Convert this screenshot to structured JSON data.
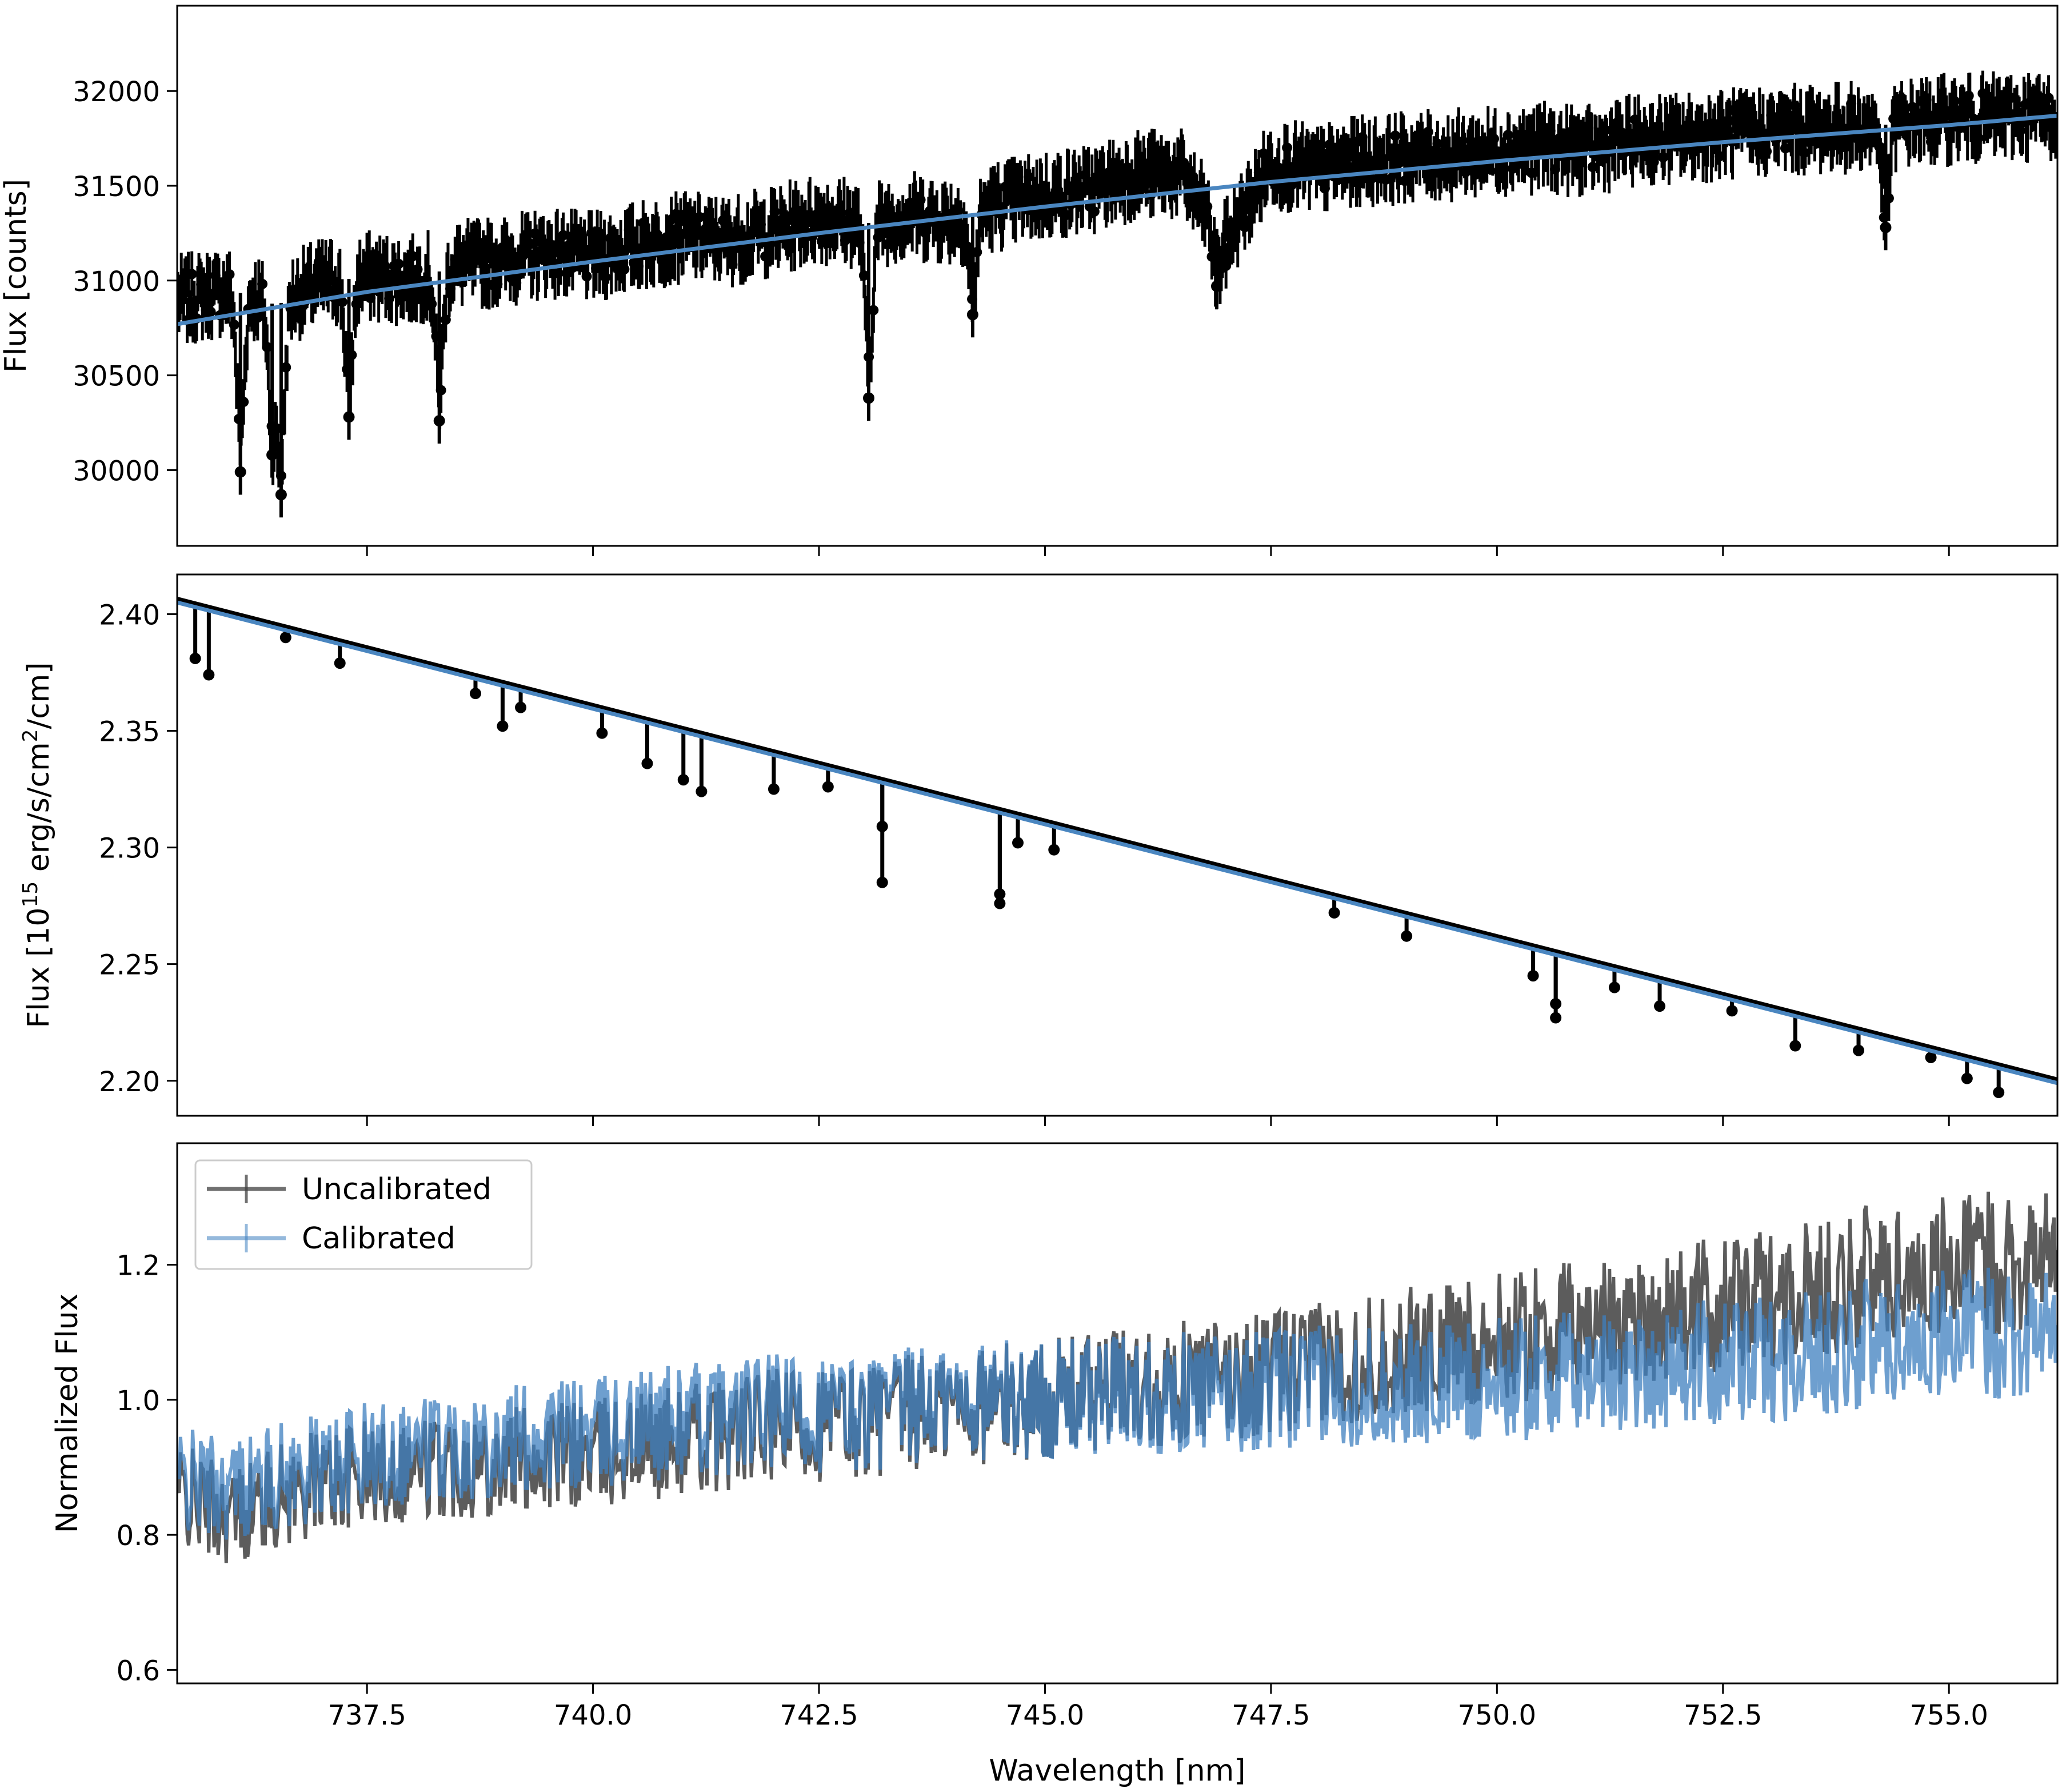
{
  "chart_data": [
    {
      "type": "scatter",
      "title": "",
      "xlabel": "",
      "ylabel": "Flux [counts]",
      "xlim": [
        735.4,
        756.2
      ],
      "ylim": [
        29600,
        32450
      ],
      "yticks": [
        30000,
        30500,
        31000,
        31500,
        32000
      ],
      "ytick_labels": [
        "30000",
        "30500",
        "31000",
        "31500",
        "32000"
      ],
      "xticks": [
        737.5,
        740.0,
        742.5,
        745.0,
        747.5,
        750.0,
        752.5,
        755.0
      ],
      "grid": false,
      "series": [
        {
          "kind": "data-with-errorbars",
          "color": "#000000",
          "x": [
            735.5,
            736.0,
            736.5,
            737.0,
            737.5,
            738.0,
            738.5,
            739.0,
            739.5,
            740.0,
            740.5,
            741.0,
            741.5,
            742.0,
            742.5,
            743.0,
            743.5,
            744.0,
            744.5,
            745.0,
            745.5,
            746.0,
            746.5,
            747.0,
            747.5,
            748.0,
            748.5,
            749.0,
            749.5,
            750.0,
            750.5,
            751.0,
            751.5,
            752.0,
            752.5,
            753.0,
            753.5,
            754.0,
            754.5,
            755.0,
            755.5,
            756.0
          ],
          "y": [
            30900,
            30950,
            30870,
            30990,
            31020,
            31000,
            31080,
            31100,
            31150,
            31120,
            31180,
            31230,
            31210,
            31260,
            31330,
            31300,
            31340,
            31320,
            31400,
            31450,
            31480,
            31560,
            31560,
            31200,
            31620,
            31580,
            31630,
            31650,
            31660,
            31690,
            31700,
            31680,
            31740,
            31750,
            31770,
            31790,
            31800,
            31810,
            31830,
            31850,
            31860,
            31870
          ],
          "yerr": 120,
          "dips": [
            {
              "x": 736.1,
              "y": 29990
            },
            {
              "x": 736.55,
              "y": 29870
            },
            {
              "x": 736.45,
              "y": 30080
            },
            {
              "x": 737.3,
              "y": 30280
            },
            {
              "x": 738.3,
              "y": 30260
            },
            {
              "x": 743.05,
              "y": 30380
            },
            {
              "x": 744.2,
              "y": 30820
            },
            {
              "x": 746.9,
              "y": 30970
            },
            {
              "x": 754.3,
              "y": 31280
            }
          ]
        },
        {
          "kind": "model-line",
          "color": "#4a86c0",
          "x": [
            735.4,
            737.5,
            740.0,
            742.5,
            745.0,
            747.5,
            750.0,
            752.5,
            755.0,
            756.2
          ],
          "y": [
            30770,
            30940,
            31100,
            31250,
            31390,
            31520,
            31630,
            31730,
            31820,
            31870
          ]
        }
      ]
    },
    {
      "type": "scatter",
      "title": "",
      "xlabel": "",
      "ylabel_prefix": "Flux [10",
      "ylabel_exp": "15",
      "ylabel_mid": " erg/s/cm",
      "ylabel_exp2": "2",
      "ylabel_suffix": "/cm]",
      "xlim": [
        735.4,
        756.2
      ],
      "ylim": [
        2.185,
        2.417
      ],
      "yticks": [
        2.2,
        2.25,
        2.3,
        2.35,
        2.4
      ],
      "ytick_labels": [
        "2.20",
        "2.25",
        "2.30",
        "2.35",
        "2.40"
      ],
      "xticks": [
        737.5,
        740.0,
        742.5,
        745.0,
        747.5,
        750.0,
        752.5,
        755.0
      ],
      "grid": false,
      "series": [
        {
          "kind": "continuum-line",
          "color": "#4a86c0",
          "x": [
            735.4,
            756.2
          ],
          "y": [
            2.405,
            2.199
          ]
        }
      ],
      "absorption_points": [
        {
          "x": 735.6,
          "y": 2.381
        },
        {
          "x": 735.75,
          "y": 2.374
        },
        {
          "x": 736.6,
          "y": 2.39
        },
        {
          "x": 737.2,
          "y": 2.379
        },
        {
          "x": 738.7,
          "y": 2.366
        },
        {
          "x": 739.0,
          "y": 2.352
        },
        {
          "x": 739.2,
          "y": 2.36
        },
        {
          "x": 740.1,
          "y": 2.349
        },
        {
          "x": 740.6,
          "y": 2.336
        },
        {
          "x": 741.0,
          "y": 2.329
        },
        {
          "x": 741.2,
          "y": 2.324
        },
        {
          "x": 742.0,
          "y": 2.325
        },
        {
          "x": 742.6,
          "y": 2.326
        },
        {
          "x": 743.2,
          "y": 2.285
        },
        {
          "x": 743.2,
          "y": 2.309
        },
        {
          "x": 744.5,
          "y": 2.276
        },
        {
          "x": 744.5,
          "y": 2.28
        },
        {
          "x": 744.7,
          "y": 2.302
        },
        {
          "x": 745.1,
          "y": 2.299
        },
        {
          "x": 748.2,
          "y": 2.272
        },
        {
          "x": 749.0,
          "y": 2.262
        },
        {
          "x": 750.4,
          "y": 2.245
        },
        {
          "x": 750.65,
          "y": 2.227
        },
        {
          "x": 750.65,
          "y": 2.233
        },
        {
          "x": 751.3,
          "y": 2.24
        },
        {
          "x": 751.8,
          "y": 2.232
        },
        {
          "x": 752.6,
          "y": 2.23
        },
        {
          "x": 753.3,
          "y": 2.215
        },
        {
          "x": 754.0,
          "y": 2.213
        },
        {
          "x": 754.8,
          "y": 2.21
        },
        {
          "x": 755.2,
          "y": 2.201
        },
        {
          "x": 755.55,
          "y": 2.195
        }
      ]
    },
    {
      "type": "line",
      "title": "",
      "xlabel": "Wavelength [nm]",
      "ylabel": "Normalized Flux",
      "xlim": [
        735.4,
        756.2
      ],
      "ylim": [
        0.58,
        1.38
      ],
      "yticks": [
        0.6,
        0.8,
        1.0,
        1.2
      ],
      "ytick_labels": [
        "0.6",
        "0.8",
        "1.0",
        "1.2"
      ],
      "xticks": [
        737.5,
        740.0,
        742.5,
        745.0,
        747.5,
        750.0,
        752.5,
        755.0
      ],
      "xtick_labels": [
        "737.5",
        "740.0",
        "742.5",
        "745.0",
        "747.5",
        "750.0",
        "752.5",
        "755.0"
      ],
      "legend_position": "top-left",
      "grid": false,
      "series": [
        {
          "name": "Uncalibrated",
          "color": "#404040",
          "x": [
            735.4,
            736.0,
            737.0,
            738.0,
            739.0,
            740.0,
            741.0,
            742.0,
            743.0,
            744.0,
            745.0,
            746.0,
            747.0,
            748.0,
            749.0,
            750.0,
            751.0,
            752.0,
            753.0,
            754.0,
            755.0,
            756.2
          ],
          "y": [
            0.86,
            0.83,
            0.88,
            0.9,
            0.91,
            0.92,
            0.94,
            0.96,
            0.97,
            0.99,
            1.0,
            1.02,
            1.03,
            1.05,
            1.07,
            1.09,
            1.11,
            1.13,
            1.15,
            1.18,
            1.2,
            1.21
          ]
        },
        {
          "name": "Calibrated",
          "color": "#3e7fbf",
          "x": [
            735.4,
            736.0,
            737.0,
            738.0,
            739.0,
            740.0,
            741.0,
            742.0,
            743.0,
            744.0,
            745.0,
            746.0,
            747.0,
            748.0,
            749.0,
            750.0,
            751.0,
            752.0,
            753.0,
            754.0,
            755.0,
            756.2
          ],
          "y": [
            0.88,
            0.87,
            0.9,
            0.93,
            0.94,
            0.95,
            0.97,
            0.98,
            0.98,
            1.0,
            1.0,
            1.01,
            1.01,
            1.02,
            1.02,
            1.03,
            1.04,
            1.05,
            1.06,
            1.08,
            1.1,
            1.1
          ]
        }
      ],
      "noise_amplitude": 0.09
    }
  ]
}
